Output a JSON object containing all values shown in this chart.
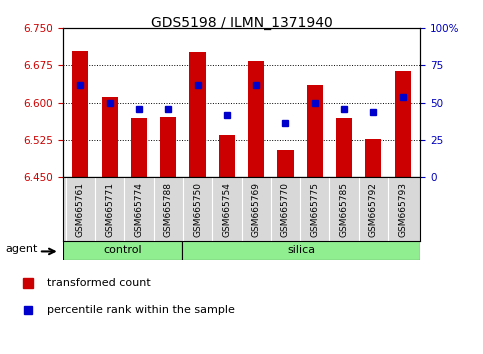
{
  "title": "GDS5198 / ILMN_1371940",
  "samples": [
    "GSM665761",
    "GSM665771",
    "GSM665774",
    "GSM665788",
    "GSM665750",
    "GSM665754",
    "GSM665769",
    "GSM665770",
    "GSM665775",
    "GSM665785",
    "GSM665792",
    "GSM665793"
  ],
  "groups": [
    "control",
    "control",
    "control",
    "control",
    "silica",
    "silica",
    "silica",
    "silica",
    "silica",
    "silica",
    "silica",
    "silica"
  ],
  "red_values": [
    6.705,
    6.612,
    6.57,
    6.572,
    6.703,
    6.535,
    6.685,
    6.505,
    6.635,
    6.57,
    6.527,
    6.663
  ],
  "blue_values": [
    6.635,
    6.6,
    6.588,
    6.588,
    6.635,
    6.575,
    6.635,
    6.558,
    6.6,
    6.588,
    6.582,
    6.612
  ],
  "ylim_left": [
    6.45,
    6.75
  ],
  "ylim_right": [
    0,
    100
  ],
  "yticks_left": [
    6.45,
    6.525,
    6.6,
    6.675,
    6.75
  ],
  "yticks_right": [
    0,
    25,
    50,
    75,
    100
  ],
  "ytick_right_labels": [
    "0",
    "25",
    "50",
    "75",
    "100%"
  ],
  "bar_color": "#CC0000",
  "dot_color": "#0000CC",
  "bar_bottom": 6.45,
  "group_band_color": "#90EE90",
  "tick_label_color_left": "#CC0000",
  "tick_label_color_right": "#0000BB",
  "agent_label": "agent",
  "legend_bar": "transformed count",
  "legend_dot": "percentile rank within the sample",
  "n_control": 4,
  "n_silica": 8
}
